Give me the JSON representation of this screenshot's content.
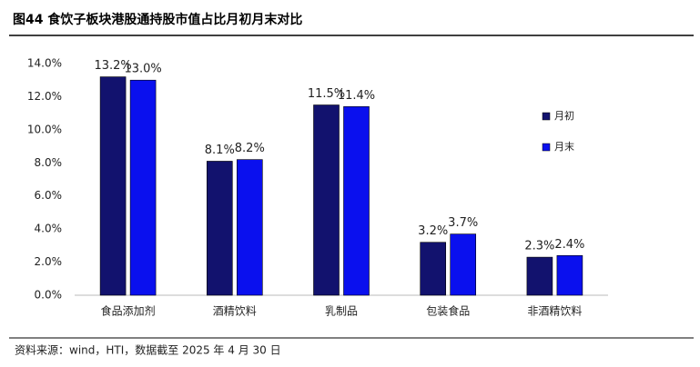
{
  "chart_data": {
    "type": "bar",
    "title": "图44 食饮子板块港股通持股市值占比月初月末对比",
    "source": "资料来源：wind，HTI，数据截至 2025 年 4 月 30 日",
    "categories": [
      "食品添加剂",
      "酒精饮料",
      "乳制品",
      "包装食品",
      "非酒精饮料"
    ],
    "series": [
      {
        "name": "月初",
        "color": "#12126e",
        "values": [
          13.2,
          8.1,
          11.5,
          3.2,
          2.3
        ],
        "value_labels": [
          "13.2%",
          "8.1%",
          "11.5%",
          "3.2%",
          "2.3%"
        ]
      },
      {
        "name": "月末",
        "color": "#0a10ee",
        "values": [
          13.0,
          8.2,
          11.4,
          3.7,
          2.4
        ],
        "value_labels": [
          "13.0%",
          "8.2%",
          "11.4%",
          "3.7%",
          "2.4%"
        ]
      }
    ],
    "ylim": [
      0,
      14
    ],
    "yticks": [
      {
        "value": 0,
        "label": "0.0%"
      },
      {
        "value": 2,
        "label": "2.0%"
      },
      {
        "value": 4,
        "label": "4.0%"
      },
      {
        "value": 6,
        "label": "6.0%"
      },
      {
        "value": 8,
        "label": "8.0%"
      },
      {
        "value": 10,
        "label": "10.0%"
      },
      {
        "value": 12,
        "label": "12.0%"
      },
      {
        "value": 14,
        "label": "14.0%"
      }
    ],
    "legend": "right"
  }
}
